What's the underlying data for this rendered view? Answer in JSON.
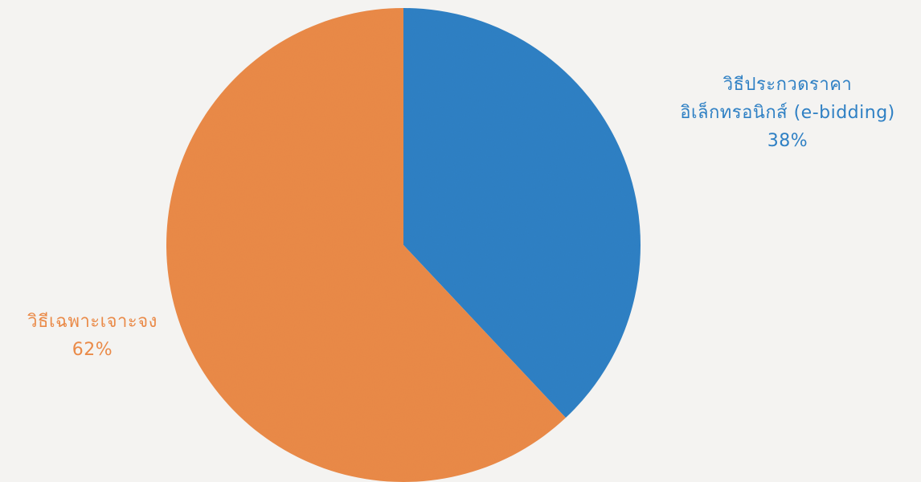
{
  "chart_data": {
    "type": "pie",
    "slices": [
      {
        "name_lines": [
          "วิธีประกวดราคา",
          "อิเล็กทรอนิกส์ (e-bidding)"
        ],
        "percent_label": "38%",
        "value": 38,
        "color": "#2f80c4"
      },
      {
        "name_lines": [
          "วิธีเฉพาะเจาะจง"
        ],
        "percent_label": "62%",
        "value": 62,
        "color": "#ea8a48"
      }
    ]
  }
}
